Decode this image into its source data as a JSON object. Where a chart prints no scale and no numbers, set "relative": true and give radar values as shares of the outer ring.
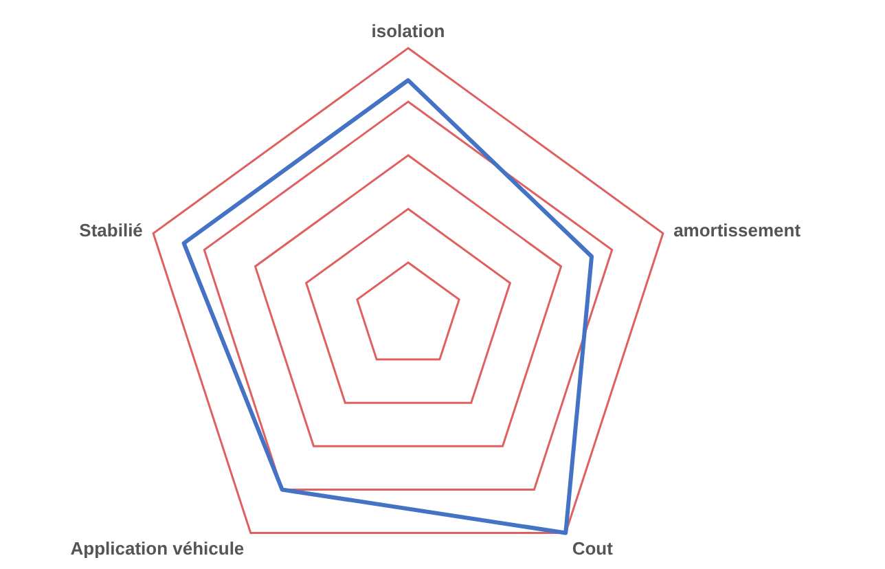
{
  "chart_data": {
    "type": "radar",
    "categories": [
      "isolation",
      "amortissement",
      "Cout",
      "Application véhicule",
      "Stabilié"
    ],
    "relative": true,
    "grid": true,
    "legend": false,
    "series": [
      {
        "color": "#4472c4",
        "values": [
          0.88,
          0.72,
          1,
          0.8,
          0.88
        ]
      }
    ]
  }
}
